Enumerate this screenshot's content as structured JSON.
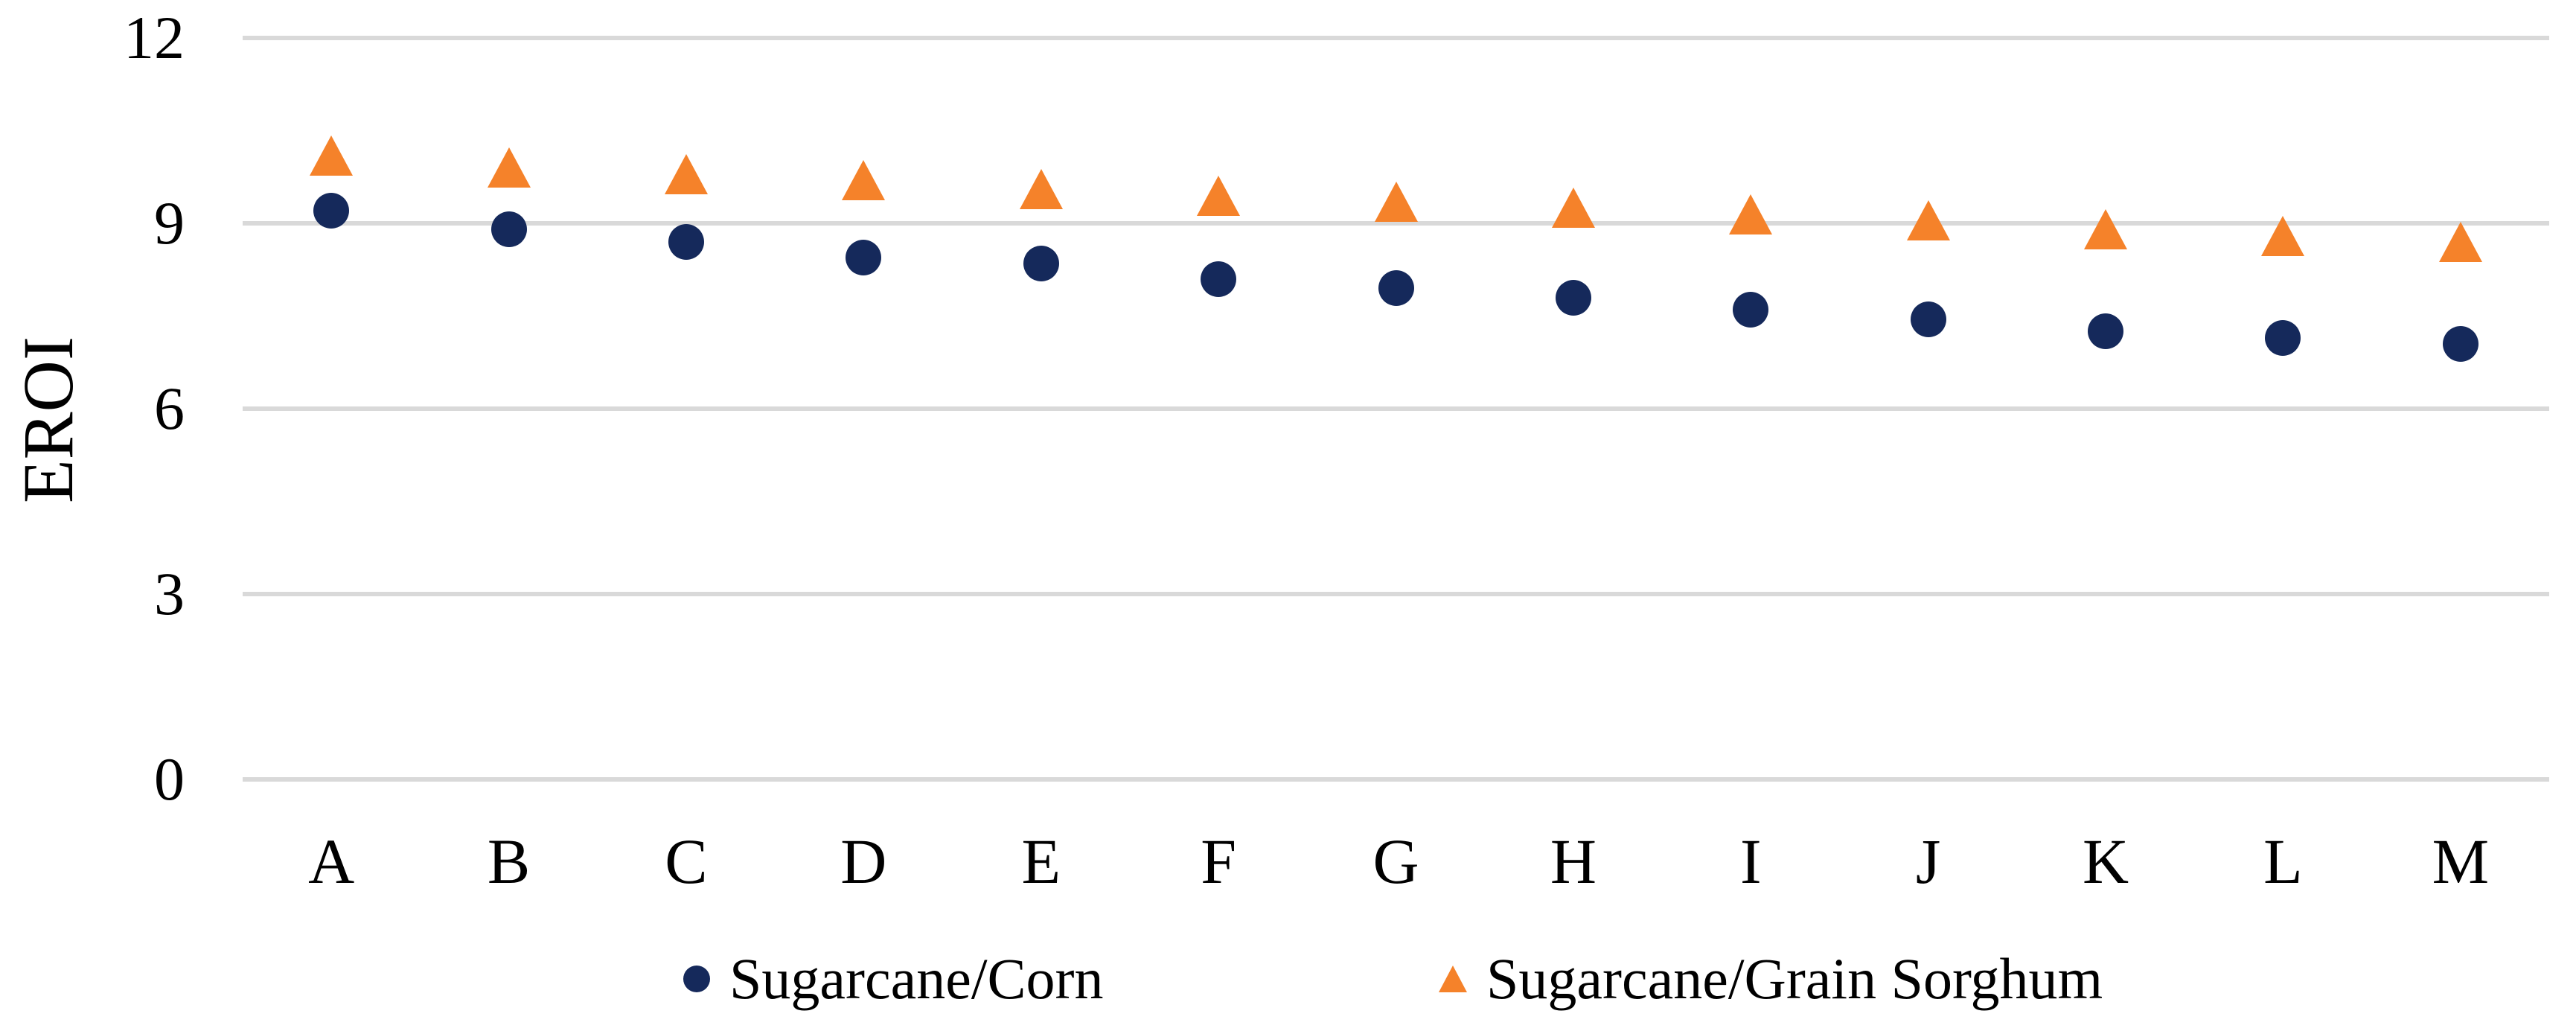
{
  "chart_data": {
    "type": "scatter",
    "title": "",
    "xlabel": "",
    "ylabel": "EROI",
    "categories": [
      "A",
      "B",
      "C",
      "D",
      "E",
      "F",
      "G",
      "H",
      "I",
      "J",
      "K",
      "L",
      "M"
    ],
    "series": [
      {
        "name": "Sugarcane/Corn",
        "marker": "circle",
        "color": "#15295B",
        "values": [
          9.2,
          8.9,
          8.7,
          8.45,
          8.35,
          8.1,
          7.95,
          7.8,
          7.6,
          7.45,
          7.25,
          7.15,
          7.05
        ]
      },
      {
        "name": "Sugarcane/Grain Sorghum",
        "marker": "triangle",
        "color": "#F5822A",
        "values": [
          10.1,
          9.9,
          9.8,
          9.7,
          9.55,
          9.45,
          9.35,
          9.25,
          9.15,
          9.05,
          8.9,
          8.8,
          8.7
        ]
      }
    ],
    "yticks": [
      0,
      3,
      6,
      9,
      12
    ],
    "ylim": [
      0,
      12
    ],
    "grid": "horizontal",
    "gridline_color": "#D9D9D9",
    "legend_position": "bottom"
  }
}
